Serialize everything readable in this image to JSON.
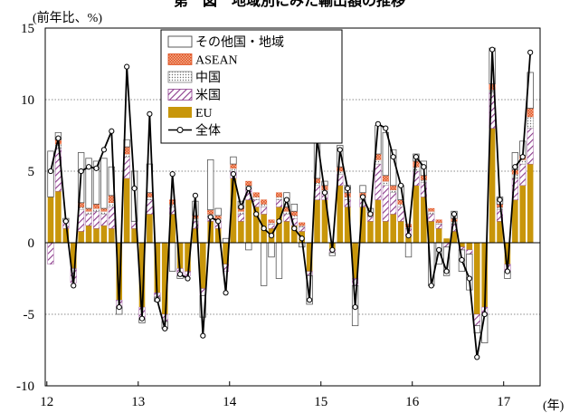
{
  "page": {
    "title": "第 図　地域別にみた輸出額の推移"
  },
  "chart_data": {
    "type": "bar",
    "title": "第 図　地域別にみた輸出額の推移",
    "ylabel": "(前年比、%)",
    "xunit": "(年)",
    "ylim": [
      -10,
      15
    ],
    "yticks": [
      15,
      10,
      5,
      0,
      -5,
      -10
    ],
    "xticks": [
      {
        "label": "12",
        "index": 0
      },
      {
        "label": "13",
        "index": 12
      },
      {
        "label": "14",
        "index": 24
      },
      {
        "label": "15",
        "index": 36
      },
      {
        "label": "16",
        "index": 48
      },
      {
        "label": "17",
        "index": 60
      }
    ],
    "grid": "horizontal-dotted",
    "stacked": true,
    "legend_position": "top-center",
    "series": [
      {
        "name": "EU",
        "color": "#C8960A",
        "pattern": "solid",
        "values": [
          3.2,
          3.6,
          1.0,
          -1.8,
          0.8,
          1.2,
          1.0,
          1.2,
          1.0,
          -4.0,
          4.5,
          1.0,
          -4.5,
          2.0,
          -3.5,
          -5.0,
          2.0,
          -1.8,
          -2.0,
          1.0,
          -3.2,
          1.5,
          1.0,
          -1.5,
          4.5,
          1.5,
          3.0,
          2.5,
          2.0,
          1.0,
          2.5,
          1.5,
          1.2,
          0.8,
          -2.0,
          3.0,
          3.0,
          -0.5,
          4.0,
          2.5,
          -2.5,
          2.5,
          1.5,
          3.0,
          1.5,
          2.0,
          1.5,
          0.5,
          4.0,
          3.2,
          1.5,
          1.0,
          0.3,
          0.8,
          -0.3,
          -0.5,
          -5.0,
          -4.5,
          8.0,
          1.5,
          -1.5,
          3.0,
          4.0,
          5.5
        ]
      },
      {
        "name": "米国",
        "color": "#8B3A8B",
        "pattern": "hatch",
        "values": [
          -1.5,
          3.0,
          0.5,
          -1.0,
          1.5,
          0.8,
          1.2,
          0.8,
          1.5,
          -0.5,
          1.5,
          0.5,
          -0.8,
          1.0,
          -0.3,
          -0.5,
          0.5,
          -0.5,
          -0.3,
          0.5,
          -0.5,
          0.3,
          0.5,
          -0.5,
          0.5,
          0.5,
          0.8,
          0.5,
          0.5,
          0.3,
          0.5,
          0.5,
          0.5,
          0.3,
          -0.3,
          1.0,
          0.5,
          -0.2,
          0.8,
          0.5,
          -0.5,
          0.5,
          0.3,
          2.5,
          2.5,
          1.5,
          1.0,
          0.5,
          1.0,
          1.0,
          0.5,
          0.3,
          -0.3,
          0.5,
          -0.2,
          -0.3,
          -0.8,
          -0.5,
          2.5,
          0.8,
          -0.5,
          1.5,
          1.5,
          2.5
        ]
      },
      {
        "name": "中国",
        "color": "#808080",
        "pattern": "dots",
        "values": [
          0.0,
          0.3,
          0.0,
          0.0,
          0.2,
          0.2,
          0.2,
          0.2,
          0.3,
          0.0,
          0.2,
          0.0,
          0.0,
          0.2,
          0.0,
          0.0,
          0.2,
          0.0,
          0.0,
          0.2,
          0.0,
          0.2,
          0.2,
          0.0,
          0.2,
          0.2,
          0.2,
          0.2,
          0.2,
          0.1,
          0.2,
          0.2,
          0.2,
          0.1,
          0.0,
          0.2,
          0.2,
          0.0,
          0.2,
          0.2,
          0.0,
          0.2,
          0.1,
          0.3,
          0.3,
          0.2,
          0.2,
          0.1,
          0.3,
          0.2,
          0.2,
          0.1,
          0.0,
          0.2,
          0.0,
          0.0,
          0.0,
          0.0,
          0.2,
          0.2,
          0.0,
          0.3,
          0.3,
          0.8
        ]
      },
      {
        "name": "ASEAN",
        "color": "#E05020",
        "pattern": "cross",
        "values": [
          0.0,
          0.3,
          0.0,
          0.0,
          0.3,
          0.2,
          0.3,
          0.2,
          0.5,
          0.0,
          0.5,
          0.0,
          0.0,
          0.3,
          0.0,
          0.0,
          0.3,
          0.0,
          0.0,
          0.2,
          0.0,
          0.3,
          0.2,
          0.0,
          0.3,
          0.2,
          0.3,
          0.3,
          0.3,
          0.2,
          0.3,
          0.3,
          0.3,
          0.2,
          0.0,
          0.3,
          0.3,
          0.0,
          0.3,
          0.3,
          0.0,
          0.3,
          0.2,
          0.4,
          0.4,
          0.3,
          0.3,
          0.2,
          0.4,
          0.3,
          0.2,
          0.2,
          0.0,
          0.2,
          0.0,
          0.0,
          0.0,
          0.0,
          0.4,
          0.2,
          0.0,
          0.3,
          0.3,
          0.6
        ]
      },
      {
        "name": "その他国・地域",
        "color": "#ffffff",
        "pattern": "outline",
        "values": [
          3.2,
          0.5,
          0.2,
          0.0,
          3.5,
          3.5,
          3.0,
          3.5,
          2.0,
          -0.5,
          0.5,
          3.5,
          -0.3,
          2.0,
          -0.3,
          -0.5,
          -2.0,
          -0.2,
          0.0,
          1.0,
          -1.5,
          3.5,
          0.5,
          0.3,
          0.5,
          0.5,
          -0.5,
          0.0,
          -3.0,
          -1.0,
          -2.5,
          1.0,
          0.5,
          -0.3,
          -2.0,
          3.2,
          0.3,
          -0.2,
          1.5,
          0.5,
          -2.8,
          0.5,
          0.3,
          2.0,
          3.0,
          2.5,
          1.0,
          -1.0,
          0.5,
          1.0,
          -3.0,
          -1.5,
          -2.0,
          0.5,
          -1.5,
          -2.5,
          -0.5,
          -2.0,
          2.5,
          0.5,
          -0.5,
          1.2,
          1.0,
          2.5
        ]
      },
      {
        "name": "全体",
        "type": "line",
        "color": "#000000",
        "values": [
          5.0,
          7.3,
          1.5,
          -3.0,
          5.0,
          5.3,
          5.2,
          6.5,
          7.8,
          -4.5,
          12.3,
          3.8,
          -5.3,
          9.0,
          -4.0,
          -6.0,
          4.8,
          -2.2,
          -2.5,
          3.3,
          -6.5,
          1.8,
          1.5,
          -3.5,
          4.8,
          2.5,
          3.8,
          2.0,
          1.0,
          0.5,
          1.5,
          3.0,
          1.0,
          0.3,
          -4.0,
          7.3,
          3.5,
          -0.5,
          6.5,
          3.8,
          -4.5,
          3.2,
          2.0,
          8.3,
          8.0,
          6.0,
          4.0,
          0.5,
          6.0,
          5.3,
          -3.0,
          -0.5,
          -2.0,
          2.0,
          -1.2,
          -2.5,
          -8.0,
          -5.0,
          13.5,
          3.0,
          -2.0,
          5.3,
          6.0,
          13.3
        ]
      }
    ]
  }
}
